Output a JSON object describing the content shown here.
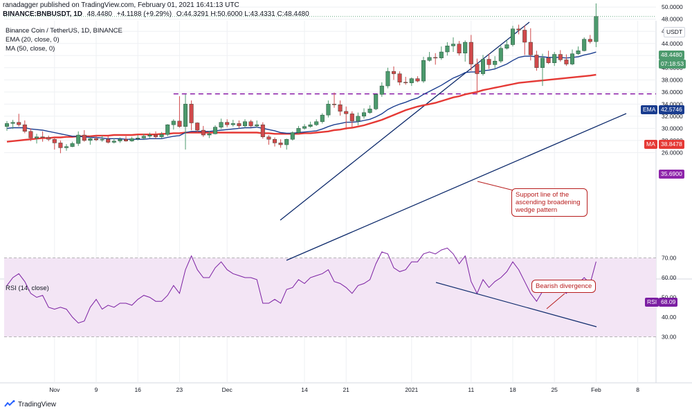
{
  "header": {
    "published": "ranadagger published on TradingView.com, February 01, 2021 16:41:13 UTC",
    "symbol": "BINANCE:BNBUSDT, 1D",
    "last": "48.4480",
    "change": "+4.1188 (+9.29%)",
    "ohlc": "O:44.3291 H:50.6000 L:43.4331 C:48.4480"
  },
  "legend": {
    "title": "Binance Coin / TetherUS, 1D, BINANCE",
    "ema": "EMA (20, close, 0)",
    "ma": "MA (50, close, 0)",
    "rsi": "RSI (14, close)"
  },
  "price_axis": {
    "unit": "USDT",
    "ticks": [
      "50.0000",
      "48.0000",
      "46.0000",
      "44.0000",
      "42.0000",
      "40.0000",
      "38.0000",
      "36.0000",
      "34.0000",
      "32.0000",
      "30.0000",
      "28.0000",
      "26.0000"
    ],
    "last_price": "48.4480",
    "countdown": "07:18:53",
    "ema_tag": "EMA",
    "ema_value": "42.5746",
    "ma_tag": "MA",
    "ma_value": "38.8478",
    "support_value": "35.6900"
  },
  "rsi_axis": {
    "ticks": [
      "70.00",
      "60.00",
      "50.00",
      "40.00",
      "30.00"
    ],
    "tag": "RSI",
    "value": "68.09"
  },
  "time_axis": {
    "labels": [
      "Nov",
      "9",
      "16",
      "23",
      "Dec",
      "14",
      "21",
      "2021",
      "11",
      "18",
      "25",
      "Feb",
      "8"
    ]
  },
  "annotations": {
    "support_line": "Support line of the ascending broadening wedge pattern",
    "bearish": "Bearish divergence"
  },
  "brand": "TradingView",
  "colors": {
    "up": "#4c9a6d",
    "down": "#d0494b",
    "ema": "#1a3d8f",
    "ma": "#e53935",
    "rsi": "#7b1fa2",
    "rsi_band": "#f3e5f5",
    "trendline": "#0d2a6b",
    "support": "#8e24aa",
    "callout": "#b71c1c"
  },
  "chart_data": {
    "type": "candlestick",
    "title": "Binance Coin / TetherUS, 1D, BINANCE",
    "x": [
      "Oct 25",
      "Oct 26",
      "Oct 27",
      "Oct 28",
      "Oct 29",
      "Oct 30",
      "Oct 31",
      "Nov 1",
      "Nov 2",
      "Nov 3",
      "Nov 4",
      "Nov 5",
      "Nov 6",
      "Nov 7",
      "Nov 8",
      "Nov 9",
      "Nov 10",
      "Nov 11",
      "Nov 12",
      "Nov 13",
      "Nov 14",
      "Nov 15",
      "Nov 16",
      "Nov 17",
      "Nov 18",
      "Nov 19",
      "Nov 20",
      "Nov 21",
      "Nov 22",
      "Nov 23",
      "Nov 24",
      "Nov 25",
      "Nov 26",
      "Nov 27",
      "Nov 28",
      "Nov 29",
      "Nov 30",
      "Dec 1",
      "Dec 2",
      "Dec 3",
      "Dec 4",
      "Dec 5",
      "Dec 6",
      "Dec 7",
      "Dec 8",
      "Dec 9",
      "Dec 10",
      "Dec 11",
      "Dec 12",
      "Dec 13",
      "Dec 14",
      "Dec 15",
      "Dec 16",
      "Dec 17",
      "Dec 18",
      "Dec 19",
      "Dec 20",
      "Dec 21",
      "Dec 22",
      "Dec 23",
      "Dec 24",
      "Dec 25",
      "Dec 26",
      "Dec 27",
      "Dec 28",
      "Dec 29",
      "Dec 30",
      "Dec 31",
      "Jan 1",
      "Jan 2",
      "Jan 3",
      "Jan 4",
      "Jan 5",
      "Jan 6",
      "Jan 7",
      "Jan 8",
      "Jan 9",
      "Jan 10",
      "Jan 11",
      "Jan 12",
      "Jan 13",
      "Jan 14",
      "Jan 15",
      "Jan 16",
      "Jan 17",
      "Jan 18",
      "Jan 19",
      "Jan 20",
      "Jan 21",
      "Jan 22",
      "Jan 23",
      "Jan 24",
      "Jan 25",
      "Jan 26",
      "Jan 27",
      "Jan 28",
      "Jan 29",
      "Jan 30",
      "Jan 31",
      "Feb 1"
    ],
    "open": [
      30.3,
      30.8,
      31.0,
      30.6,
      29.5,
      28.4,
      28.6,
      28.5,
      28.2,
      27.6,
      26.8,
      27.0,
      27.5,
      28.9,
      28.0,
      28.3,
      28.1,
      28.2,
      27.7,
      27.9,
      28.2,
      27.9,
      28.3,
      28.4,
      28.7,
      28.9,
      28.6,
      29.0,
      30.6,
      31.2,
      30.3,
      34.0,
      30.9,
      29.7,
      28.9,
      29.1,
      30.2,
      31.0,
      30.6,
      30.8,
      30.4,
      31.1,
      30.4,
      30.6,
      28.6,
      28.2,
      27.6,
      27.3,
      28.2,
      29.3,
      30.0,
      30.3,
      30.6,
      31.1,
      32.2,
      34.0,
      33.9,
      32.8,
      32.4,
      31.2,
      32.0,
      32.6,
      33.2,
      35.6,
      37.0,
      39.4,
      39.0,
      37.6,
      37.5,
      38.2,
      37.8,
      41.2,
      41.7,
      41.6,
      42.6,
      43.6,
      43.9,
      42.4,
      44.2,
      40.6,
      39.0,
      41.4,
      40.5,
      41.1,
      43.2,
      43.8,
      46.4,
      46.2,
      44.2,
      42.1,
      40.0,
      41.6,
      40.8,
      42.2,
      41.3,
      40.6,
      42.3,
      42.8,
      44.7,
      44.3
    ],
    "high": [
      31.2,
      31.4,
      32.4,
      31.3,
      30.0,
      29.1,
      29.5,
      28.8,
      28.6,
      28.0,
      27.4,
      27.8,
      29.5,
      29.7,
      28.6,
      28.9,
      28.8,
      28.7,
      28.4,
      28.5,
      28.7,
      28.6,
      28.9,
      29.1,
      29.3,
      29.5,
      29.4,
      30.7,
      31.5,
      35.3,
      35.6,
      34.6,
      31.0,
      30.4,
      29.6,
      30.5,
      31.6,
      31.5,
      31.4,
      31.3,
      31.5,
      31.4,
      31.3,
      31.0,
      28.9,
      28.5,
      28.2,
      28.3,
      29.5,
      30.4,
      30.7,
      31.1,
      31.5,
      32.5,
      34.6,
      35.9,
      34.6,
      33.6,
      32.8,
      32.6,
      33.3,
      33.8,
      35.7,
      37.6,
      40.0,
      40.2,
      39.4,
      38.5,
      38.4,
      38.6,
      41.8,
      42.6,
      42.4,
      43.5,
      44.2,
      45.0,
      44.4,
      44.5,
      45.4,
      41.5,
      42.1,
      42.3,
      41.9,
      43.6,
      44.6,
      46.9,
      47.1,
      47.0,
      46.5,
      42.8,
      42.3,
      42.8,
      42.6,
      42.9,
      42.2,
      43.0,
      43.5,
      45.0,
      45.4,
      50.6
    ],
    "low": [
      29.6,
      29.9,
      30.3,
      29.2,
      27.9,
      27.5,
      27.8,
      27.9,
      26.5,
      25.9,
      26.3,
      26.9,
      27.1,
      27.8,
      27.3,
      27.9,
      27.8,
      27.5,
      27.5,
      27.6,
      27.8,
      27.8,
      28.0,
      28.2,
      28.4,
      28.3,
      28.3,
      28.7,
      29.8,
      30.1,
      26.5,
      29.7,
      29.2,
      28.6,
      28.4,
      29.0,
      29.9,
      30.2,
      30.3,
      30.0,
      30.1,
      30.2,
      30.1,
      28.3,
      27.3,
      27.0,
      26.8,
      26.5,
      28.0,
      29.1,
      29.8,
      30.1,
      30.4,
      30.8,
      31.8,
      33.4,
      32.1,
      29.8,
      30.0,
      30.5,
      31.6,
      32.4,
      33.0,
      35.2,
      36.6,
      38.0,
      37.1,
      37.2,
      37.0,
      37.6,
      37.5,
      41.0,
      40.5,
      41.3,
      42.0,
      42.6,
      42.0,
      41.0,
      39.5,
      35.6,
      38.7,
      39.8,
      39.9,
      40.8,
      43.0,
      43.5,
      45.5,
      42.1,
      41.2,
      39.5,
      37.0,
      40.6,
      40.3,
      41.0,
      40.3,
      40.4,
      42.1,
      42.7,
      44.0,
      43.4
    ],
    "close": [
      30.8,
      31.0,
      30.6,
      29.5,
      28.4,
      28.6,
      28.5,
      28.2,
      27.6,
      26.8,
      27.0,
      27.5,
      28.9,
      28.0,
      28.3,
      28.1,
      28.2,
      27.7,
      27.9,
      28.2,
      27.9,
      28.3,
      28.4,
      28.7,
      28.9,
      28.6,
      29.0,
      30.6,
      31.2,
      30.3,
      34.0,
      30.9,
      29.7,
      28.9,
      29.1,
      30.2,
      31.0,
      30.6,
      30.8,
      30.4,
      31.1,
      30.4,
      30.6,
      28.6,
      28.2,
      27.6,
      27.3,
      28.2,
      29.3,
      30.0,
      30.3,
      30.6,
      31.1,
      32.2,
      34.0,
      33.9,
      32.8,
      32.4,
      31.2,
      32.0,
      32.6,
      33.2,
      35.6,
      37.0,
      39.4,
      39.0,
      37.6,
      37.5,
      38.2,
      37.8,
      41.2,
      41.7,
      41.6,
      42.6,
      43.6,
      43.9,
      42.4,
      44.2,
      40.6,
      39.0,
      41.4,
      40.5,
      41.1,
      43.2,
      43.8,
      46.4,
      46.2,
      44.2,
      42.1,
      40.0,
      41.6,
      40.8,
      42.2,
      41.3,
      40.6,
      42.3,
      42.8,
      44.7,
      44.3,
      48.448
    ],
    "ema20": [
      30.0,
      30.1,
      30.1,
      30.1,
      29.9,
      29.8,
      29.7,
      29.5,
      29.3,
      29.1,
      28.9,
      28.7,
      28.7,
      28.6,
      28.5,
      28.5,
      28.4,
      28.3,
      28.3,
      28.3,
      28.2,
      28.2,
      28.2,
      28.2,
      28.3,
      28.3,
      28.3,
      28.5,
      28.7,
      28.8,
      29.3,
      29.5,
      29.5,
      29.5,
      29.5,
      29.6,
      29.7,
      29.8,
      29.9,
      30.0,
      30.1,
      30.1,
      30.2,
      30.0,
      29.8,
      29.6,
      29.3,
      29.2,
      29.2,
      29.3,
      29.4,
      29.5,
      29.6,
      29.9,
      30.3,
      30.6,
      30.8,
      31.0,
      31.0,
      31.1,
      31.3,
      31.5,
      31.9,
      32.4,
      33.1,
      33.6,
      34.0,
      34.3,
      34.7,
      35.0,
      35.6,
      36.1,
      36.6,
      37.1,
      37.7,
      38.3,
      38.7,
      39.2,
      39.3,
      39.3,
      39.5,
      39.6,
      39.8,
      40.2,
      40.6,
      41.2,
      41.7,
      41.9,
      41.9,
      41.8,
      41.8,
      41.7,
      41.7,
      41.7,
      41.6,
      41.7,
      41.8,
      42.1,
      42.3,
      42.5746
    ],
    "ma50": [
      27.8,
      27.9,
      28.0,
      28.1,
      28.2,
      28.3,
      28.4,
      28.4,
      28.5,
      28.5,
      28.6,
      28.6,
      28.7,
      28.7,
      28.7,
      28.8,
      28.8,
      28.8,
      28.9,
      28.9,
      28.9,
      28.9,
      29.0,
      29.0,
      29.0,
      29.0,
      29.1,
      29.1,
      29.2,
      29.2,
      29.3,
      29.3,
      29.3,
      29.3,
      29.3,
      29.3,
      29.3,
      29.3,
      29.3,
      29.3,
      29.3,
      29.3,
      29.3,
      29.2,
      29.2,
      29.1,
      29.1,
      29.1,
      29.1,
      29.1,
      29.2,
      29.2,
      29.3,
      29.4,
      29.5,
      29.7,
      29.8,
      30.0,
      30.1,
      30.3,
      30.5,
      30.8,
      31.1,
      31.4,
      31.8,
      32.2,
      32.6,
      33.0,
      33.3,
      33.6,
      33.8,
      34.0,
      34.2,
      34.5,
      34.8,
      35.1,
      35.3,
      35.6,
      35.8,
      36.0,
      36.3,
      36.5,
      36.7,
      36.9,
      37.1,
      37.3,
      37.5,
      37.6,
      37.7,
      37.8,
      37.9,
      38.0,
      38.1,
      38.2,
      38.3,
      38.4,
      38.5,
      38.6,
      38.7,
      38.8478
    ],
    "rsi": [
      56,
      60,
      62,
      58,
      52,
      50,
      51,
      45,
      44,
      45,
      44,
      40,
      37,
      38,
      45,
      49,
      44,
      46,
      45,
      47,
      47,
      46,
      49,
      51,
      50,
      48,
      48,
      51,
      56,
      52,
      64,
      71,
      64,
      60,
      60,
      65,
      68,
      64,
      62,
      61,
      60,
      60,
      59,
      47,
      47,
      49,
      47,
      54,
      55,
      59,
      57,
      60,
      61,
      62,
      64,
      58,
      57,
      55,
      52,
      56,
      57,
      59,
      67,
      73,
      72,
      65,
      63,
      64,
      68,
      68,
      72,
      73,
      72,
      74,
      75,
      72,
      67,
      71,
      58,
      52,
      59,
      55,
      58,
      60,
      63,
      68,
      64,
      58,
      52,
      48,
      53,
      53,
      55,
      54,
      52,
      56,
      57,
      60,
      57,
      68.09
    ],
    "ylim": [
      25,
      51.5
    ],
    "rsi_ylim": [
      27,
      77
    ],
    "rsi_levels": [
      70,
      30
    ],
    "support_level": 35.69,
    "grid": true
  }
}
